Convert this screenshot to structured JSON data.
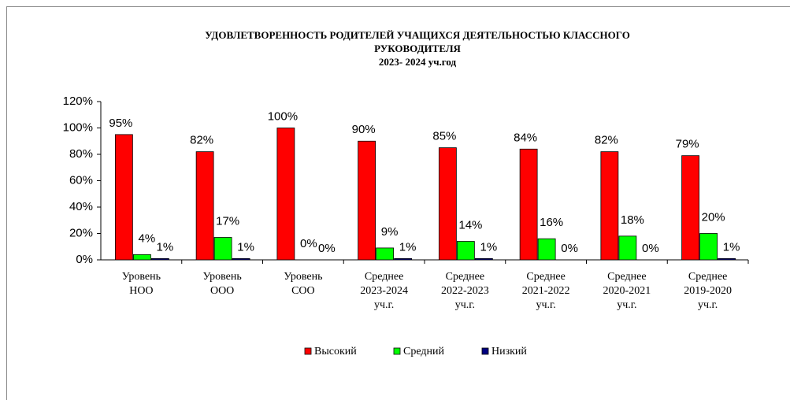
{
  "chart_data": {
    "type": "bar",
    "title": [
      "УДОВЛЕТВОРЕННОСТЬ РОДИТЕЛЕЙ УЧАЩИХСЯ ДЕЯТЕЛЬНОСТЬЮ КЛАССНОГО",
      "РУКОВОДИТЕЛЯ",
      "2023- 2024 уч.год"
    ],
    "categories": [
      [
        "Уровень",
        "НОО"
      ],
      [
        "Уровень",
        "ООО"
      ],
      [
        "Уровень",
        "СОО"
      ],
      [
        "Среднее",
        "2023-2024",
        "уч.г."
      ],
      [
        "Среднее",
        "2022-2023",
        "уч.г."
      ],
      [
        "Среднее",
        "2021-2022",
        "уч.г."
      ],
      [
        "Среднее",
        "2020-2021",
        "уч.г."
      ],
      [
        "Среднее",
        "2019-2020",
        "уч.г."
      ]
    ],
    "series": [
      {
        "name": "Высокий",
        "color": "#ff0000",
        "values": [
          95,
          82,
          100,
          90,
          85,
          84,
          82,
          79
        ],
        "value_labels": [
          "95%",
          "82%",
          "100%",
          "90%",
          "85%",
          "84%",
          "82%",
          "79%"
        ]
      },
      {
        "name": "Средний",
        "color": "#00ff00",
        "values": [
          4,
          17,
          0,
          9,
          14,
          16,
          18,
          20
        ],
        "value_labels": [
          "4%",
          "17%",
          "0%",
          "9%",
          "14%",
          "16%",
          "18%",
          "20%"
        ]
      },
      {
        "name": "Низкий",
        "color": "#000080",
        "values": [
          1,
          1,
          0,
          1,
          1,
          0,
          0,
          1
        ],
        "value_labels": [
          "1%",
          "1%",
          "0%",
          "1%",
          "1%",
          "0%",
          "0%",
          "1%"
        ]
      }
    ],
    "ylim": [
      0,
      120
    ],
    "yticks": [
      {
        "value": 0,
        "label": "0%"
      },
      {
        "value": 20,
        "label": "20%"
      },
      {
        "value": 40,
        "label": "40%"
      },
      {
        "value": 60,
        "label": "60%"
      },
      {
        "value": 80,
        "label": "80%"
      },
      {
        "value": 100,
        "label": "100%"
      },
      {
        "value": 120,
        "label": "120%"
      }
    ],
    "legend": "bottom"
  }
}
